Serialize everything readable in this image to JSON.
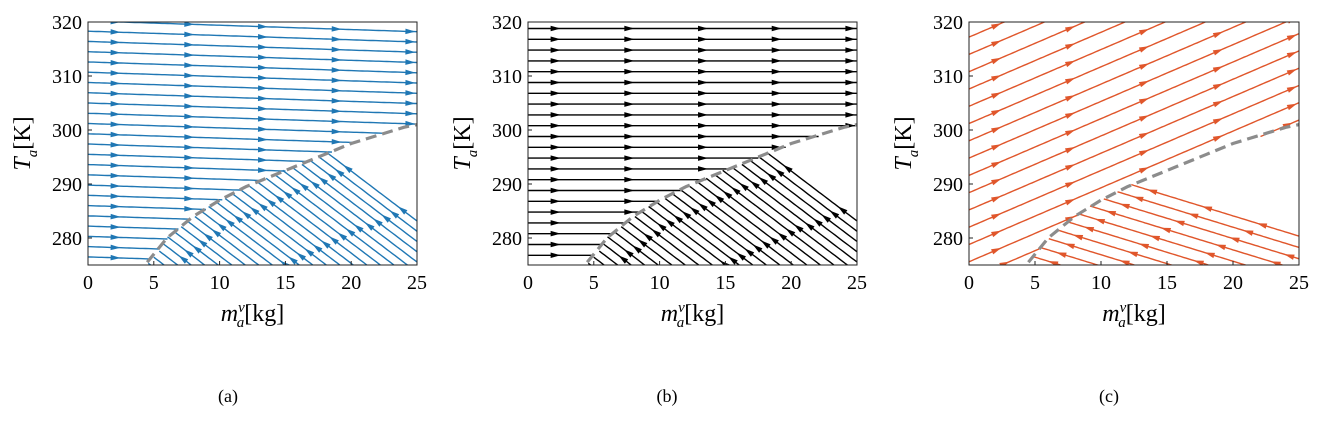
{
  "colors": {
    "panel_a": "#1f77b4",
    "panel_b": "#000000",
    "panel_c": "#e0562b",
    "boundary": "#8c8c8c"
  },
  "chart_data": [
    {
      "type": "line",
      "subtype": "streamplot",
      "caption": "(a)",
      "xlabel_var": "m",
      "xlabel_sup": "v",
      "xlabel_sub": "a",
      "xlabel_unit": "[kg]",
      "ylabel_var": "T",
      "ylabel_sub": "a",
      "ylabel_unit": "[K]",
      "xlim": [
        0,
        25
      ],
      "ylim": [
        275,
        320
      ],
      "xticks": [
        "0",
        "5",
        "10",
        "15",
        "20",
        "25"
      ],
      "yticks": [
        "280",
        "290",
        "300",
        "310",
        "320"
      ],
      "grid": false,
      "color": "#1f77b4",
      "upper_slope_K_per_kg": -0.08,
      "lower_slope_K_per_kg": -1.85,
      "boundary": {
        "x": [
          4.5,
          6,
          8,
          10,
          12,
          14,
          16,
          18,
          20,
          22,
          24,
          25
        ],
        "y": [
          275.5,
          280,
          284,
          287,
          289.5,
          291.5,
          293.5,
          295.5,
          297.5,
          299,
          300.5,
          301
        ]
      }
    },
    {
      "type": "line",
      "subtype": "streamplot",
      "caption": "(b)",
      "xlabel_var": "m",
      "xlabel_sup": "v",
      "xlabel_sub": "a",
      "xlabel_unit": "[kg]",
      "ylabel_var": "T",
      "ylabel_sub": "a",
      "ylabel_unit": "[K]",
      "xlim": [
        0,
        25
      ],
      "ylim": [
        275,
        320
      ],
      "xticks": [
        "0",
        "5",
        "10",
        "15",
        "20",
        "25"
      ],
      "yticks": [
        "280",
        "290",
        "300",
        "310",
        "320"
      ],
      "grid": false,
      "color": "#000000",
      "upper_slope_K_per_kg": 0,
      "lower_slope_K_per_kg": -1.85,
      "boundary": {
        "x": [
          4.5,
          6,
          8,
          10,
          12,
          14,
          16,
          18,
          20,
          22,
          24,
          25
        ],
        "y": [
          275.5,
          280,
          284,
          287,
          289.5,
          291.5,
          293.5,
          295.5,
          297.5,
          299,
          300.5,
          301
        ]
      }
    },
    {
      "type": "line",
      "subtype": "streamplot",
      "caption": "(c)",
      "xlabel_var": "m",
      "xlabel_sup": "v",
      "xlabel_sub": "a",
      "xlabel_unit": "[kg]",
      "ylabel_var": "T",
      "ylabel_sub": "a",
      "ylabel_unit": "[K]",
      "xlim": [
        0,
        25
      ],
      "ylim": [
        275,
        320
      ],
      "xticks": [
        "0",
        "5",
        "10",
        "15",
        "20",
        "25"
      ],
      "yticks": [
        "280",
        "290",
        "300",
        "310",
        "320"
      ],
      "grid": false,
      "color": "#e0562b",
      "upper_slope_K_per_kg": 1.05,
      "lower_slope_K_per_kg": -0.75,
      "boundary": {
        "x": [
          4.5,
          6,
          8,
          10,
          12,
          14,
          16,
          18,
          20,
          22,
          24,
          25
        ],
        "y": [
          275.5,
          280,
          284,
          287,
          289.5,
          291.5,
          293.5,
          295.5,
          297.5,
          299,
          300.5,
          301
        ]
      }
    }
  ]
}
